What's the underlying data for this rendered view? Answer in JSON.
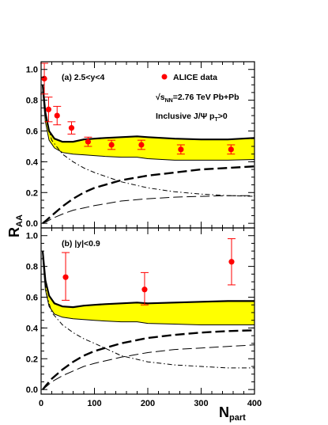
{
  "figure": {
    "ylabel_main": "R",
    "ylabel_sub": "AA",
    "xlabel_main": "N",
    "xlabel_sub": "part",
    "x_ticks": [
      "0",
      "100",
      "200",
      "300",
      "400"
    ],
    "y_ticks": [
      "0.0",
      "0.2",
      "0.4",
      "0.6",
      "0.8",
      "1.0"
    ],
    "colors": {
      "data": "#ff0000",
      "band": "#ffff00",
      "axis": "#000000"
    }
  },
  "legend": {
    "label": "ALICE data",
    "energy": "√s",
    "energy_sub": "NN",
    "energy_rest": "=2.76 TeV Pb+Pb",
    "particle": "Inclusive J/Ψ p",
    "particle_sub": "T",
    "particle_rest": ">0"
  },
  "chart_data": [
    {
      "type": "scatter",
      "panel_label": "(a) 2.5<y<4",
      "xlim": [
        0,
        400
      ],
      "ylim": [
        -0.03,
        1.05
      ],
      "series": [
        {
          "name": "ALICE data",
          "x": [
            6,
            14,
            30,
            57,
            88,
            132,
            188,
            262,
            356
          ],
          "y": [
            0.94,
            0.74,
            0.7,
            0.62,
            0.53,
            0.51,
            0.51,
            0.48,
            0.48
          ],
          "err_low": [
            0.1,
            0.08,
            0.06,
            0.04,
            0.03,
            0.03,
            0.03,
            0.03,
            0.03
          ],
          "err_high": [
            0.1,
            0.08,
            0.06,
            0.04,
            0.03,
            0.03,
            0.03,
            0.03,
            0.03
          ]
        }
      ],
      "band": {
        "x": [
          3,
          8,
          15,
          25,
          40,
          60,
          80,
          100,
          120,
          150,
          180,
          200,
          250,
          300,
          350,
          400
        ],
        "upper": [
          0.9,
          0.72,
          0.6,
          0.55,
          0.53,
          0.53,
          0.545,
          0.55,
          0.555,
          0.56,
          0.565,
          0.56,
          0.55,
          0.545,
          0.545,
          0.555
        ],
        "lower": [
          0.86,
          0.66,
          0.54,
          0.49,
          0.46,
          0.45,
          0.445,
          0.44,
          0.435,
          0.43,
          0.43,
          0.42,
          0.41,
          0.41,
          0.41,
          0.415
        ]
      },
      "curves": [
        {
          "style": "thick-dashed",
          "x": [
            3,
            10,
            20,
            40,
            60,
            80,
            100,
            150,
            200,
            250,
            300,
            350,
            400
          ],
          "y": [
            0.0,
            0.02,
            0.05,
            0.11,
            0.16,
            0.2,
            0.23,
            0.28,
            0.31,
            0.33,
            0.35,
            0.36,
            0.37
          ]
        },
        {
          "style": "thin-dashed",
          "x": [
            3,
            10,
            20,
            40,
            60,
            80,
            100,
            150,
            200,
            250,
            300,
            350,
            400
          ],
          "y": [
            0.0,
            0.01,
            0.03,
            0.06,
            0.085,
            0.1,
            0.115,
            0.145,
            0.16,
            0.17,
            0.175,
            0.18,
            0.18
          ]
        },
        {
          "style": "dash-dot",
          "x": [
            3,
            10,
            20,
            40,
            60,
            80,
            100,
            150,
            200,
            250,
            300,
            350,
            400
          ],
          "y": [
            0.9,
            0.66,
            0.54,
            0.45,
            0.4,
            0.36,
            0.33,
            0.27,
            0.23,
            0.205,
            0.19,
            0.18,
            0.175
          ]
        }
      ]
    },
    {
      "type": "scatter",
      "panel_label": "(b) |y|<0.9",
      "xlim": [
        0,
        400
      ],
      "ylim": [
        -0.03,
        1.05
      ],
      "series": [
        {
          "name": "ALICE data",
          "x": [
            46,
            194,
            357
          ],
          "y": [
            0.73,
            0.65,
            0.83
          ],
          "err_low": [
            0.15,
            0.1,
            0.15
          ],
          "err_high": [
            0.16,
            0.11,
            0.15
          ]
        }
      ],
      "band": {
        "x": [
          3,
          8,
          15,
          25,
          40,
          60,
          80,
          100,
          120,
          150,
          180,
          200,
          250,
          300,
          350,
          400
        ],
        "upper": [
          0.9,
          0.71,
          0.61,
          0.56,
          0.54,
          0.535,
          0.545,
          0.55,
          0.555,
          0.56,
          0.565,
          0.56,
          0.565,
          0.57,
          0.575,
          0.575
        ],
        "lower": [
          0.86,
          0.65,
          0.54,
          0.49,
          0.47,
          0.46,
          0.455,
          0.45,
          0.445,
          0.44,
          0.44,
          0.43,
          0.425,
          0.42,
          0.42,
          0.42
        ]
      },
      "curves": [
        {
          "style": "thick-dashed",
          "x": [
            3,
            10,
            20,
            40,
            60,
            80,
            100,
            150,
            200,
            250,
            300,
            350,
            400
          ],
          "y": [
            0.0,
            0.03,
            0.07,
            0.13,
            0.18,
            0.22,
            0.25,
            0.3,
            0.335,
            0.355,
            0.37,
            0.38,
            0.385
          ]
        },
        {
          "style": "thin-dashed",
          "x": [
            3,
            10,
            20,
            40,
            60,
            80,
            100,
            150,
            200,
            250,
            300,
            350,
            400
          ],
          "y": [
            0.0,
            0.02,
            0.05,
            0.09,
            0.12,
            0.15,
            0.17,
            0.21,
            0.24,
            0.26,
            0.27,
            0.28,
            0.29
          ]
        },
        {
          "style": "dash-dot",
          "x": [
            3,
            10,
            20,
            40,
            60,
            80,
            100,
            150,
            200,
            250,
            300,
            350,
            400
          ],
          "y": [
            0.9,
            0.62,
            0.5,
            0.42,
            0.37,
            0.33,
            0.3,
            0.22,
            0.18,
            0.16,
            0.15,
            0.14,
            0.14
          ]
        }
      ]
    }
  ]
}
